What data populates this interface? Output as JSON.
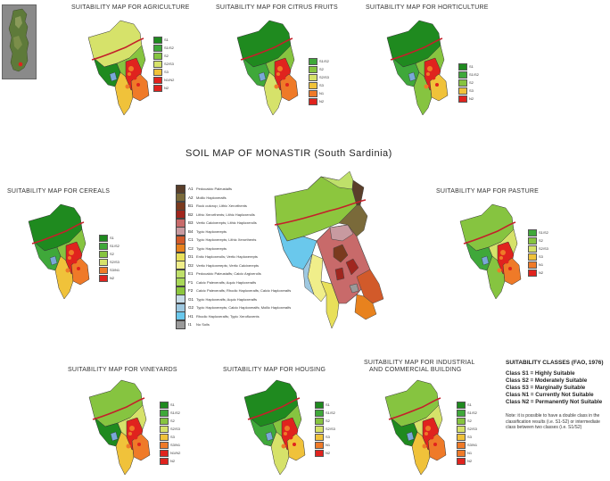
{
  "main_title": "SOIL MAP OF  MONASTIR (South Sardinia)",
  "maps": {
    "agriculture": {
      "title": "SUITABILITY MAP FOR AGRICULTURE",
      "legend": [
        "S1",
        "S1/S2",
        "S2",
        "S2/S3",
        "S3",
        "N1/N2",
        "N2"
      ]
    },
    "citrus": {
      "title": "SUITABILITY MAP FOR CITRUS FRUITS",
      "legend": [
        "S1/S2",
        "S2",
        "S2/S3",
        "S3",
        "N1",
        "N2"
      ]
    },
    "horticulture": {
      "title": "SUITABILITY MAP FOR HORTICULTURE",
      "legend": [
        "S1",
        "S1/S2",
        "S2",
        "S3",
        "N2"
      ]
    },
    "cereals": {
      "title": "SUITABILITY MAP FOR CEREALS",
      "legend": [
        "S1",
        "S1/S2",
        "S2",
        "S2/S3",
        "S3/N1",
        "N2"
      ]
    },
    "pasture": {
      "title": "SUITABILITY MAP FOR PASTURE",
      "legend": [
        "S1/S2",
        "S2",
        "S2/S3",
        "S3",
        "N1",
        "N2"
      ]
    },
    "vineyards": {
      "title": "SUITABILITY MAP FOR VINEYARDS",
      "legend": [
        "S1",
        "S1/S2",
        "S2",
        "S2/S3",
        "S3",
        "S3/N1",
        "N1/N2",
        "N2"
      ]
    },
    "housing": {
      "title": "SUITABILITY MAP FOR HOUSING",
      "legend": [
        "S1",
        "S1/S2",
        "S2",
        "S2/S3",
        "S3",
        "N1",
        "N2"
      ]
    },
    "industrial": {
      "title_line1": "SUITABILITY MAP FOR INDUSTRIAL",
      "title_line2": "AND COMMERCIAL BUILDING",
      "legend": [
        "S1",
        "S1/S2",
        "S2",
        "S2/S3",
        "S3",
        "S3/N1",
        "N1",
        "N2"
      ]
    }
  },
  "soil_legend": [
    {
      "code": "A1",
      "label": "Pedocalcic Paleustalfs",
      "color": "#5a3e2a"
    },
    {
      "code": "A2",
      "label": "Mollic Haploxeralfs",
      "color": "#7a6a3a"
    },
    {
      "code": "B1",
      "label": "Rock outcrop; Lithic Xerorthents",
      "color": "#7a3a1e"
    },
    {
      "code": "B2",
      "label": "Lithic Xerorthents; Lithic Haploxerolls",
      "color": "#a0261e"
    },
    {
      "code": "B3",
      "label": "Vertic Calcixerepts; Lithic Haploxerolls",
      "color": "#c86a6a"
    },
    {
      "code": "B4",
      "label": "Typic Haploxerepts",
      "color": "#c89aa0"
    },
    {
      "code": "C1",
      "label": "Typic Haploxerepts; Lithic Xerorthents",
      "color": "#d25a2a"
    },
    {
      "code": "C2",
      "label": "Typic Haploxerepts",
      "color": "#e8821e"
    },
    {
      "code": "D1",
      "label": "Entic Haploxerolls; Vertic Haploxerepts",
      "color": "#e8e05a"
    },
    {
      "code": "D2",
      "label": "Vertic Haploxerepts; Vertic Calcixerepts",
      "color": "#f0ee8a"
    },
    {
      "code": "E1",
      "label": "Pedocalcic Paleustalfs; Calcic Argixerolls",
      "color": "#bfe06a"
    },
    {
      "code": "F1",
      "label": "Calcic Palexeralfs; Aquic Haploxeralfs",
      "color": "#a8d858"
    },
    {
      "code": "F2",
      "label": "Calcic Palexeralfs; Rhodic Haploxeralfs; Calcic Haploxeralfs",
      "color": "#8cc63e"
    },
    {
      "code": "G1",
      "label": "Typic Haploxeralfs; Aquic Haploxeralfs",
      "color": "#c8dce8"
    },
    {
      "code": "G2",
      "label": "Typic Haploxerepts; Calcic Haploxeralfs; Mollic Haploxeralfs",
      "color": "#9ec8e0"
    },
    {
      "code": "H1",
      "label": "Rhodic Haploxeralfs; Typic Xerofluvents",
      "color": "#6ac8ec"
    },
    {
      "code": "I1",
      "label": "No Soils",
      "color": "#9a9a9a"
    }
  ],
  "classes": {
    "heading": "SUITABILITY CLASSES (FAO, 1976)",
    "items": [
      "Class S1 = Highly Suitable",
      "Class S2 = Moderately Suitable",
      "Class S3 = Marginally Suitable",
      "Class N1 = Currently Not Suitable",
      "Class N2 = Permanently Not Suitable"
    ],
    "note": "Note: it is possible to have a double class in the classification results (i.e. S1-S2) or intermediate class between two classes (i.e. S1/S2)"
  },
  "colors": {
    "S1": "#1f8a1f",
    "S1S2": "#3fa83a",
    "S2": "#86c440",
    "S2S3": "#d6e26a",
    "S3": "#f0c23a",
    "N1": "#ef7a28",
    "N2": "#e0231e",
    "road": "#c4202a",
    "pond": "#7aa8d8"
  }
}
